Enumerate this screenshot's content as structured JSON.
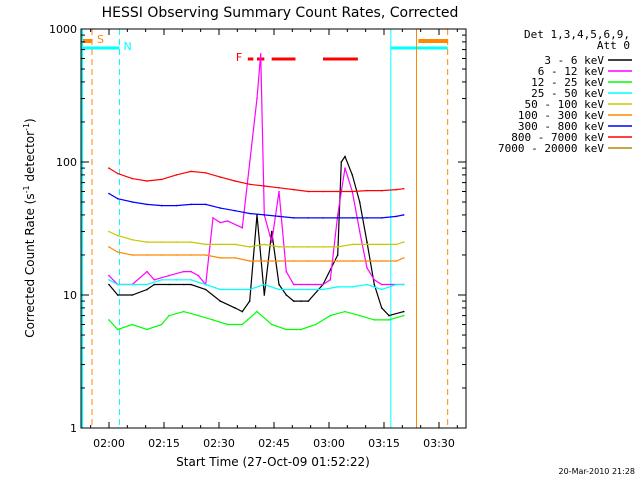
{
  "chart_data": {
    "type": "line",
    "title": "HESSI Observing Summary Count Rates, Corrected",
    "xlabel": "Start Time (27-Oct-09 01:52:22)",
    "ylabel_main": "Corrected Count Rate (s",
    "ylabel_sup1": "-1",
    "ylabel_mid": " detector",
    "ylabel_sup2": "-1",
    "ylabel_end": ")",
    "x_unit": "minutes after 01:52:22",
    "xlim": [
      0,
      105
    ],
    "ylim": [
      1,
      1000
    ],
    "yscale": "log",
    "x_ticks": [
      "02:00",
      "02:15",
      "02:30",
      "02:45",
      "03:00",
      "03:15",
      "03:30"
    ],
    "y_ticks": [
      "1",
      "10",
      "100",
      "1000"
    ],
    "legend_header": [
      "Det 1,3,4,5,6,9,",
      "Att 0"
    ],
    "legend_placement": "right",
    "timestamp": "20-Mar-2010 21:28",
    "annotations": {
      "saa_label": "S",
      "night_label": "N",
      "flare_label": "F"
    },
    "series": [
      {
        "name": "3 - 6 keV",
        "color": "#000000",
        "x": [
          7.6,
          10,
          14,
          18,
          20,
          24,
          28,
          30,
          34,
          38,
          42,
          44,
          46,
          48,
          50,
          52,
          54,
          56,
          58,
          60,
          62,
          66,
          70,
          71,
          72,
          74,
          76,
          78,
          80,
          82,
          84,
          88
        ],
        "y": [
          12,
          10,
          10,
          11,
          12,
          12,
          12,
          12,
          11,
          9,
          8,
          7.5,
          9,
          40,
          10,
          30,
          12,
          10,
          9,
          9,
          9,
          12,
          20,
          100,
          110,
          80,
          50,
          25,
          12,
          8,
          7,
          7.5
        ]
      },
      {
        "name": "6 - 12 keV",
        "color": "#ff00ff",
        "x": [
          7.6,
          10,
          14,
          18,
          20,
          24,
          28,
          30,
          32,
          34,
          36,
          38,
          40,
          44,
          48,
          49,
          50,
          52,
          54,
          56,
          58,
          60,
          62,
          64,
          66,
          68,
          70,
          72,
          74,
          76,
          78,
          80,
          82,
          88
        ],
        "y": [
          14,
          12,
          12,
          15,
          13,
          14,
          15,
          15,
          14,
          12,
          38,
          35,
          36,
          32,
          300,
          650,
          40,
          25,
          60,
          15,
          12,
          12,
          12,
          12,
          12,
          13,
          40,
          90,
          60,
          30,
          16,
          13,
          12,
          12
        ]
      },
      {
        "name": "12 - 25 keV",
        "color": "#00ff00",
        "x": [
          7.6,
          10,
          14,
          18,
          22,
          24,
          28,
          32,
          36,
          40,
          44,
          48,
          52,
          56,
          60,
          64,
          68,
          72,
          76,
          80,
          84,
          88
        ],
        "y": [
          6.5,
          5.5,
          6,
          5.5,
          6,
          7,
          7.5,
          7,
          6.5,
          6,
          6,
          7.5,
          6,
          5.5,
          5.5,
          6,
          7,
          7.5,
          7,
          6.5,
          6.5,
          7
        ]
      },
      {
        "name": "25 - 50 keV",
        "color": "#00ffff",
        "x": [
          7.6,
          10,
          14,
          18,
          22,
          26,
          30,
          34,
          38,
          42,
          46,
          50,
          54,
          58,
          62,
          66,
          70,
          74,
          78,
          82,
          86,
          88
        ],
        "y": [
          13,
          12,
          12,
          12,
          13,
          13,
          13,
          12,
          11,
          11,
          11,
          12,
          11,
          11,
          11,
          11,
          11.5,
          11.5,
          12,
          11,
          12,
          12
        ]
      },
      {
        "name": "50 - 100 keV",
        "color": "#c8c800",
        "x": [
          7.6,
          10,
          14,
          18,
          22,
          26,
          30,
          34,
          38,
          42,
          46,
          50,
          54,
          58,
          62,
          66,
          70,
          74,
          78,
          82,
          86,
          88
        ],
        "y": [
          30,
          28,
          26,
          25,
          25,
          25,
          25,
          24,
          24,
          24,
          23,
          24,
          23,
          23,
          23,
          23,
          23,
          24,
          24,
          24,
          24,
          25
        ]
      },
      {
        "name": "100 - 300 keV",
        "color": "#ff8800",
        "x": [
          7.6,
          10,
          14,
          18,
          22,
          26,
          30,
          34,
          38,
          42,
          46,
          50,
          54,
          58,
          62,
          66,
          70,
          74,
          78,
          82,
          86,
          88
        ],
        "y": [
          23,
          21,
          20,
          20,
          20,
          20,
          20,
          20,
          19,
          19,
          18,
          18,
          18,
          18,
          18,
          18,
          18,
          18,
          18,
          18,
          18,
          19
        ]
      },
      {
        "name": "300 - 800 keV",
        "color": "#0000ff",
        "x": [
          7.6,
          10,
          14,
          18,
          22,
          26,
          30,
          34,
          38,
          42,
          46,
          50,
          54,
          58,
          62,
          66,
          70,
          74,
          78,
          82,
          86,
          88
        ],
        "y": [
          58,
          53,
          50,
          48,
          47,
          47,
          48,
          48,
          45,
          43,
          41,
          40,
          39,
          38,
          38,
          38,
          38,
          38,
          38,
          38,
          39,
          40
        ]
      },
      {
        "name": "800 - 7000 keV",
        "color": "#ff0000",
        "x": [
          7.6,
          10,
          14,
          18,
          22,
          26,
          30,
          34,
          38,
          42,
          46,
          50,
          54,
          58,
          62,
          66,
          70,
          74,
          78,
          82,
          86,
          88
        ],
        "y": [
          90,
          82,
          75,
          72,
          74,
          80,
          85,
          83,
          77,
          72,
          68,
          66,
          64,
          62,
          60,
          60,
          60,
          60,
          61,
          61,
          62,
          63
        ]
      },
      {
        "name": "7000 - 20000 keV",
        "color": "#b8860b",
        "x": [],
        "y": []
      }
    ],
    "night_spans": [
      [
        0,
        10.5
      ],
      [
        84.5,
        100
      ]
    ],
    "saa_spans": [
      [
        0,
        3
      ],
      [
        92,
        100
      ]
    ],
    "flare_spans": [
      [
        45.5,
        47
      ],
      [
        48,
        50
      ],
      [
        52,
        58.5
      ],
      [
        66,
        75.5
      ]
    ],
    "vlines": [
      {
        "x": 3.0,
        "color": "#ff8800",
        "style": "dash"
      },
      {
        "x": 10.5,
        "color": "#00ffff",
        "style": "dash"
      },
      {
        "x": 84.5,
        "color": "#00ffff",
        "style": "solid"
      },
      {
        "x": 91.5,
        "color": "#ff8800",
        "style": "solid"
      },
      {
        "x": 100.0,
        "color": "#ff8800",
        "style": "dash"
      }
    ]
  }
}
